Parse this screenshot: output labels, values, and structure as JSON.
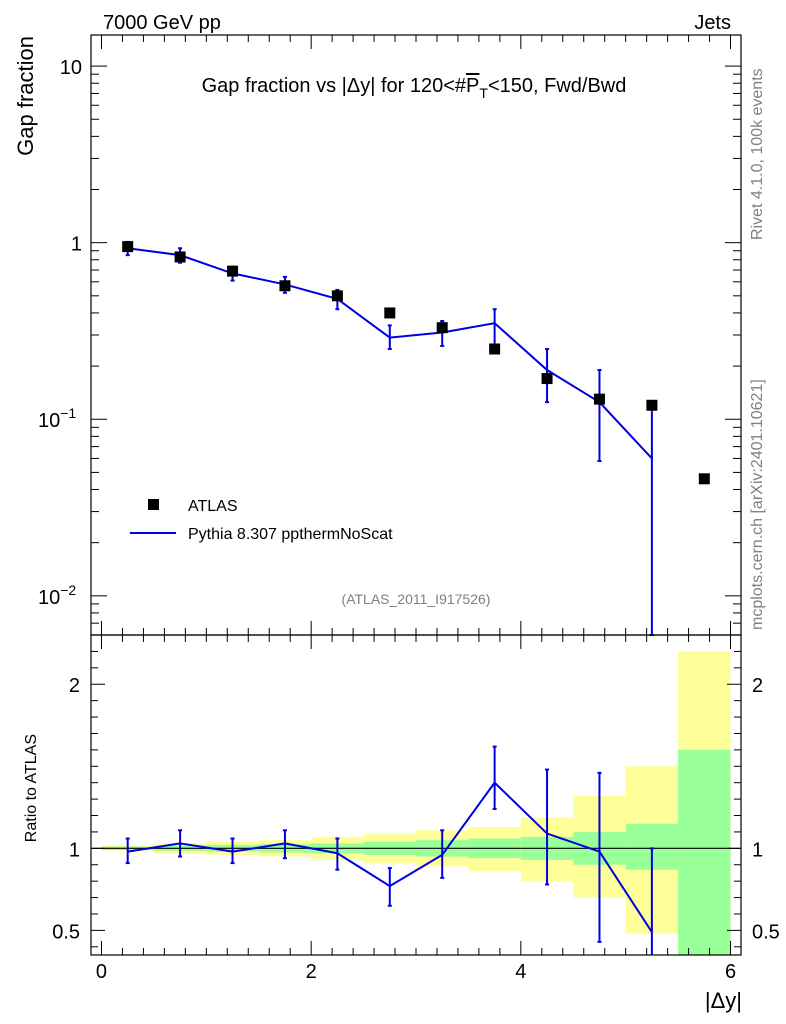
{
  "header": {
    "energy_label": "7000 GeV pp",
    "category_label": "Jets",
    "side_rivet": "Rivet 4.1.0,  100k events",
    "side_mcplots": "mcplots.cern.ch [arXiv:2401.10621]",
    "analysis_id": "(ATLAS_2011_I917526)"
  },
  "chart_data": [
    {
      "type": "scatter",
      "title": "Gap fraction vs |Δy| for 120<#̅P̅T<150, Fwd/Bwd",
      "title_parts": {
        "prefix": "Gap fraction vs |Δy| for 120<#",
        "p": "P",
        "sub": "T",
        "suffix": "<150, Fwd/Bwd"
      },
      "ylabel": "Gap fraction",
      "yscale": "log",
      "ylim": [
        0.006,
        15
      ],
      "xlim": [
        -0.1,
        6.1
      ],
      "y_ticks": [
        {
          "value": 10,
          "base": "10",
          "exp": ""
        },
        {
          "value": 1,
          "base": "1",
          "exp": ""
        },
        {
          "value": 0.1,
          "base": "10",
          "exp": "−1"
        },
        {
          "value": 0.01,
          "base": "10",
          "exp": "−2"
        }
      ],
      "legend": {
        "position": "bottom-left",
        "entries": [
          "ATLAS",
          "Pythia 8.307 ppthermNoScat"
        ]
      },
      "series": [
        {
          "name": "ATLAS",
          "x": [
            0.25,
            0.75,
            1.25,
            1.75,
            2.25,
            2.75,
            3.25,
            3.75,
            4.25,
            4.75,
            5.25,
            5.75
          ],
          "y": [
            0.95,
            0.83,
            0.69,
            0.57,
            0.5,
            0.4,
            0.33,
            0.25,
            0.17,
            0.13,
            0.12,
            0.046
          ]
        },
        {
          "name": "Pythia 8.307 ppthermNoScat",
          "x": [
            0.25,
            0.75,
            1.25,
            1.75,
            2.25,
            2.75,
            3.25,
            3.75,
            4.25,
            4.75,
            5.25
          ],
          "y": [
            0.93,
            0.85,
            0.67,
            0.58,
            0.48,
            0.29,
            0.31,
            0.35,
            0.19,
            0.125,
            0.06
          ],
          "yerr_low": [
            0.85,
            0.77,
            0.61,
            0.52,
            0.42,
            0.25,
            0.26,
            0.26,
            0.125,
            0.058,
            0.0001
          ],
          "yerr_high": [
            1.01,
            0.93,
            0.73,
            0.64,
            0.54,
            0.34,
            0.36,
            0.42,
            0.25,
            0.19,
            0.12
          ]
        }
      ]
    },
    {
      "type": "line",
      "ylabel": "Ratio to ATLAS",
      "xlabel": "|Δy|",
      "ylim": [
        0.35,
        2.3
      ],
      "xlim": [
        -0.1,
        6.1
      ],
      "x_ticks": [
        "0",
        "2",
        "4",
        "6"
      ],
      "y_ticks": [
        "0.5",
        "1",
        "2"
      ],
      "reference_line": 1,
      "bands": {
        "bin_edges": [
          0.0,
          0.5,
          1.0,
          1.5,
          2.0,
          2.5,
          3.0,
          3.5,
          4.0,
          4.5,
          5.0,
          5.5,
          6.0
        ],
        "green_low": [
          0.99,
          0.985,
          0.98,
          0.975,
          0.97,
          0.96,
          0.95,
          0.94,
          0.93,
          0.9,
          0.87,
          0.3
        ],
        "green_high": [
          1.01,
          1.015,
          1.02,
          1.025,
          1.03,
          1.04,
          1.05,
          1.06,
          1.07,
          1.1,
          1.15,
          1.6
        ],
        "yellow_low": [
          0.985,
          0.97,
          0.96,
          0.95,
          0.93,
          0.91,
          0.89,
          0.86,
          0.8,
          0.7,
          0.48,
          0.3
        ],
        "yellow_high": [
          1.015,
          1.03,
          1.04,
          1.05,
          1.07,
          1.09,
          1.11,
          1.13,
          1.19,
          1.32,
          1.5,
          2.2
        ]
      },
      "series": [
        {
          "name": "Pythia 8.307 ppthermNoScat / ATLAS",
          "x": [
            0.25,
            0.75,
            1.25,
            1.75,
            2.25,
            2.75,
            3.25,
            3.75,
            4.25,
            4.75,
            5.25
          ],
          "y": [
            0.98,
            1.03,
            0.98,
            1.03,
            0.97,
            0.77,
            0.96,
            1.4,
            1.09,
            0.98,
            0.49
          ],
          "yerr_low": [
            0.91,
            0.95,
            0.91,
            0.94,
            0.87,
            0.65,
            0.82,
            1.24,
            0.78,
            0.43,
            0.0
          ],
          "yerr_high": [
            1.06,
            1.11,
            1.06,
            1.11,
            1.06,
            0.88,
            1.11,
            1.62,
            1.48,
            1.46,
            1.0
          ]
        }
      ]
    }
  ]
}
